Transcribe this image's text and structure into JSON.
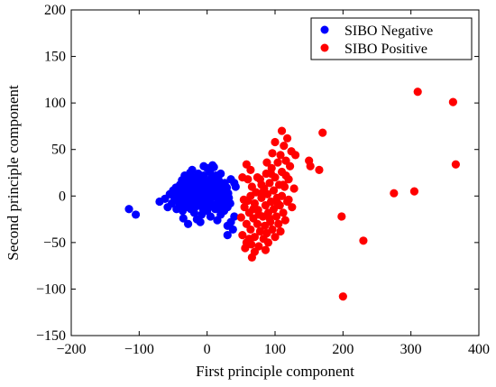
{
  "chart_data": {
    "type": "scatter",
    "xlabel": "First principle component",
    "ylabel": "Second principle component",
    "xlim": [
      -200,
      400
    ],
    "ylim": [
      -150,
      200
    ],
    "xticks": [
      -200,
      -100,
      0,
      100,
      200,
      300,
      400
    ],
    "yticks": [
      -150,
      -100,
      -50,
      0,
      50,
      100,
      150,
      200
    ],
    "grid": false,
    "legend_position": "top-right",
    "series": [
      {
        "name": "SIBO Negative",
        "color": "#0000ff",
        "points": [
          [
            -115,
            -14
          ],
          [
            -105,
            -20
          ],
          [
            -70,
            -6
          ],
          [
            -62,
            -3
          ],
          [
            -58,
            -12
          ],
          [
            -55,
            2
          ],
          [
            -52,
            -8
          ],
          [
            -50,
            6
          ],
          [
            -48,
            -2
          ],
          [
            -46,
            9
          ],
          [
            -45,
            -14
          ],
          [
            -44,
            -5
          ],
          [
            -42,
            3
          ],
          [
            -40,
            12
          ],
          [
            -40,
            -10
          ],
          [
            -38,
            0
          ],
          [
            -37,
            17
          ],
          [
            -36,
            -16
          ],
          [
            -35,
            6
          ],
          [
            -34,
            -6
          ],
          [
            -33,
            22
          ],
          [
            -32,
            11
          ],
          [
            -31,
            -12
          ],
          [
            -30,
            2
          ],
          [
            -29,
            19
          ],
          [
            -28,
            -4
          ],
          [
            -27,
            8
          ],
          [
            -26,
            -9
          ],
          [
            -25,
            14
          ],
          [
            -25,
            25
          ],
          [
            -24,
            -14
          ],
          [
            -23,
            4
          ],
          [
            -22,
            -1
          ],
          [
            -21,
            10
          ],
          [
            -20,
            20
          ],
          [
            -20,
            -7
          ],
          [
            -19,
            -18
          ],
          [
            -18,
            5
          ],
          [
            -17,
            -3
          ],
          [
            -16,
            15
          ],
          [
            -16,
            -11
          ],
          [
            -15,
            9
          ],
          [
            -14,
            0
          ],
          [
            -13,
            24
          ],
          [
            -13,
            -6
          ],
          [
            -12,
            3
          ],
          [
            -11,
            13
          ],
          [
            -10,
            -4
          ],
          [
            -10,
            18
          ],
          [
            -9,
            7
          ],
          [
            -8,
            -9
          ],
          [
            -8,
            -20
          ],
          [
            -7,
            1
          ],
          [
            -6,
            11
          ],
          [
            -6,
            -14
          ],
          [
            -5,
            22
          ],
          [
            -4,
            5
          ],
          [
            -4,
            -2
          ],
          [
            -3,
            16
          ],
          [
            -2,
            -8
          ],
          [
            -1,
            9
          ],
          [
            0,
            30
          ],
          [
            0,
            -16
          ],
          [
            1,
            2
          ],
          [
            2,
            14
          ],
          [
            3,
            -5
          ],
          [
            4,
            26
          ],
          [
            5,
            7
          ],
          [
            5,
            -11
          ],
          [
            6,
            19
          ],
          [
            7,
            -1
          ],
          [
            8,
            10
          ],
          [
            9,
            -9
          ],
          [
            10,
            31
          ],
          [
            10,
            15
          ],
          [
            11,
            4
          ],
          [
            12,
            -14
          ],
          [
            13,
            22
          ],
          [
            14,
            0
          ],
          [
            15,
            9
          ],
          [
            16,
            -6
          ],
          [
            17,
            17
          ],
          [
            18,
            -12
          ],
          [
            19,
            3
          ],
          [
            20,
            24
          ],
          [
            21,
            -3
          ],
          [
            22,
            11
          ],
          [
            23,
            -9
          ],
          [
            24,
            6
          ],
          [
            25,
            -16
          ],
          [
            26,
            14
          ],
          [
            27,
            0
          ],
          [
            28,
            -5
          ],
          [
            29,
            9
          ],
          [
            30,
            -12
          ],
          [
            31,
            3
          ],
          [
            32,
            -2
          ],
          [
            34,
            -8
          ],
          [
            35,
            18
          ],
          [
            -28,
            -30
          ],
          [
            -10,
            -28
          ],
          [
            15,
            -26
          ],
          [
            30,
            -32
          ],
          [
            30,
            -42
          ],
          [
            35,
            -28
          ],
          [
            38,
            -36
          ],
          [
            40,
            -22
          ],
          [
            40,
            14
          ],
          [
            42,
            10
          ],
          [
            -22,
            28
          ],
          [
            -5,
            32
          ],
          [
            8,
            33
          ],
          [
            -35,
            -24
          ],
          [
            -15,
            -25
          ],
          [
            5,
            -22
          ],
          [
            20,
            -20
          ]
        ]
      },
      {
        "name": "SIBO Positive",
        "color": "#ff0000",
        "points": [
          [
            50,
            -23
          ],
          [
            52,
            -42
          ],
          [
            55,
            -12
          ],
          [
            56,
            -56
          ],
          [
            58,
            -30
          ],
          [
            60,
            -5
          ],
          [
            62,
            -18
          ],
          [
            64,
            -36
          ],
          [
            65,
            -52
          ],
          [
            66,
            10
          ],
          [
            68,
            -24
          ],
          [
            70,
            -8
          ],
          [
            70,
            -44
          ],
          [
            72,
            4
          ],
          [
            74,
            -30
          ],
          [
            75,
            -15
          ],
          [
            76,
            -54
          ],
          [
            78,
            18
          ],
          [
            78,
            -38
          ],
          [
            80,
            -2
          ],
          [
            82,
            -22
          ],
          [
            83,
            -46
          ],
          [
            84,
            8
          ],
          [
            85,
            -32
          ],
          [
            86,
            -10
          ],
          [
            87,
            24
          ],
          [
            88,
            -40
          ],
          [
            89,
            2
          ],
          [
            90,
            -18
          ],
          [
            90,
            -50
          ],
          [
            92,
            14
          ],
          [
            93,
            -28
          ],
          [
            94,
            -6
          ],
          [
            95,
            30
          ],
          [
            96,
            -36
          ],
          [
            98,
            6
          ],
          [
            98,
            -14
          ],
          [
            100,
            20
          ],
          [
            100,
            -44
          ],
          [
            102,
            -22
          ],
          [
            103,
            -2
          ],
          [
            104,
            36
          ],
          [
            105,
            -30
          ],
          [
            106,
            12
          ],
          [
            107,
            -10
          ],
          [
            108,
            44
          ],
          [
            108,
            -38
          ],
          [
            110,
            0
          ],
          [
            110,
            26
          ],
          [
            112,
            -18
          ],
          [
            113,
            54
          ],
          [
            114,
            10
          ],
          [
            115,
            -26
          ],
          [
            116,
            38
          ],
          [
            118,
            -6
          ],
          [
            118,
            62
          ],
          [
            120,
            18
          ],
          [
            122,
            32
          ],
          [
            124,
            48
          ],
          [
            125,
            -12
          ],
          [
            128,
            8
          ],
          [
            130,
            44
          ],
          [
            60,
            18
          ],
          [
            64,
            28
          ],
          [
            70,
            -60
          ],
          [
            58,
            34
          ],
          [
            66,
            -66
          ],
          [
            74,
            20
          ],
          [
            80,
            12
          ],
          [
            86,
            -58
          ],
          [
            96,
            46
          ],
          [
            100,
            58
          ],
          [
            110,
            70
          ],
          [
            112,
            12
          ],
          [
            104,
            -8
          ],
          [
            92,
            -24
          ],
          [
            82,
            4
          ],
          [
            76,
            -20
          ],
          [
            68,
            -14
          ],
          [
            62,
            -46
          ],
          [
            88,
            36
          ],
          [
            94,
            24
          ],
          [
            116,
            22
          ],
          [
            120,
            -4
          ],
          [
            54,
            -4
          ],
          [
            52,
            20
          ],
          [
            58,
            -50
          ],
          [
            64,
            0
          ],
          [
            150,
            38
          ],
          [
            152,
            32
          ],
          [
            165,
            28
          ],
          [
            170,
            68
          ],
          [
            198,
            -22
          ],
          [
            200,
            -108
          ],
          [
            230,
            -48
          ],
          [
            275,
            3
          ],
          [
            305,
            5
          ],
          [
            310,
            112
          ],
          [
            362,
            101
          ],
          [
            366,
            34
          ]
        ]
      }
    ]
  }
}
